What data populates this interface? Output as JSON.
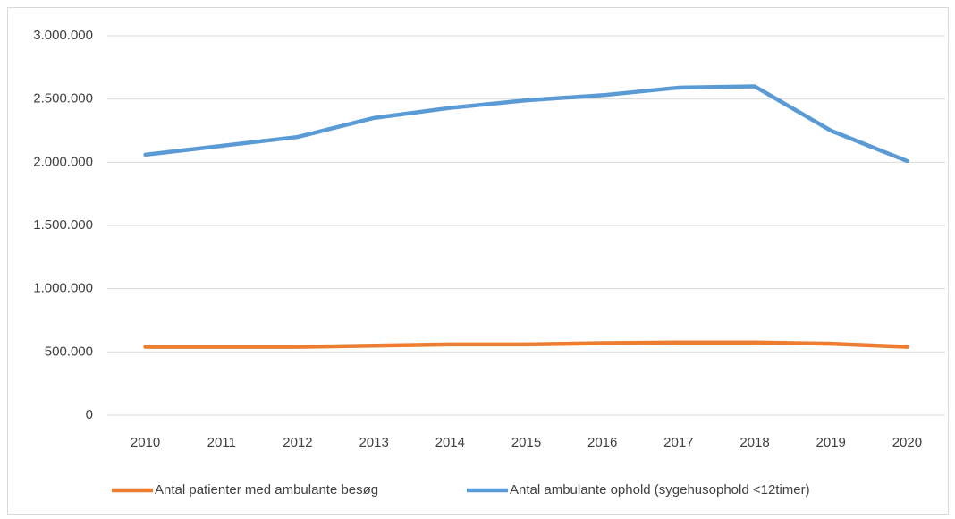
{
  "chart_data": {
    "type": "line",
    "categories": [
      "2010",
      "2011",
      "2012",
      "2013",
      "2014",
      "2015",
      "2016",
      "2017",
      "2018",
      "2019",
      "2020"
    ],
    "series": [
      {
        "name": "Antal patienter med ambulante besøg",
        "color": "#ed7d31",
        "values": [
          540000,
          540000,
          540000,
          550000,
          560000,
          560000,
          570000,
          575000,
          575000,
          565000,
          540000
        ]
      },
      {
        "name": "Antal ambulante ophold (sygehusophold <12timer)",
        "color": "#5b9bd5",
        "values": [
          2060000,
          2130000,
          2200000,
          2350000,
          2430000,
          2490000,
          2530000,
          2590000,
          2600000,
          2250000,
          2010000
        ]
      }
    ],
    "ylim": [
      0,
      3000000
    ],
    "yticks": [
      0,
      {
        "value": 500000,
        "label": "500.000"
      },
      {
        "value": 1000000,
        "label": "1.000.000"
      },
      {
        "value": 1500000,
        "label": "1.500.000"
      },
      {
        "value": 2000000,
        "label": "2.000.000"
      },
      {
        "value": 2500000,
        "label": "2.500.000"
      },
      {
        "value": 3000000,
        "label": "3.000.000"
      }
    ],
    "grid": true,
    "legend": "bottom"
  }
}
